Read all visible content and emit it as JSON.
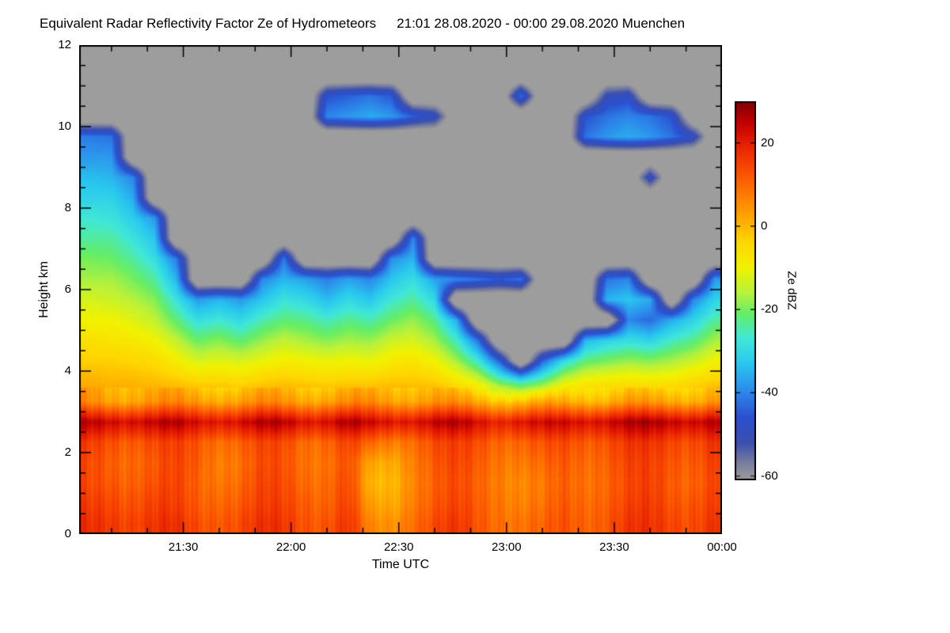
{
  "title": "Equivalent Radar Reflectivity Factor Ze of Hydrometeors",
  "subtitle": "21:01 28.08.2020 - 00:00 29.08.2020 Muenchen",
  "chart_data": {
    "type": "heatmap",
    "xlabel": "Time UTC",
    "ylabel": "Height km",
    "x_range_min": [
      0,
      179
    ],
    "x_start_time": "21:01",
    "x_end_time": "00:00",
    "y_range_km": [
      0,
      12
    ],
    "grid_on": false,
    "x_ticks": [
      {
        "t": 29,
        "label": "21:30"
      },
      {
        "t": 59,
        "label": "22:00"
      },
      {
        "t": 89,
        "label": "22:30"
      },
      {
        "t": 119,
        "label": "23:00"
      },
      {
        "t": 149,
        "label": "23:30"
      },
      {
        "t": 179,
        "label": "00:00"
      }
    ],
    "x_minor_ticks": [
      9,
      19,
      39,
      49,
      69,
      79,
      99,
      109,
      129,
      139,
      159,
      169
    ],
    "y_ticks": [
      0,
      2,
      4,
      6,
      8,
      10,
      12
    ],
    "y_minor_step": 0.5,
    "colorbar": {
      "label": "Ze dBZ",
      "vmin": -61,
      "vmax": 30,
      "ticks": [
        20,
        0,
        -20,
        -40,
        -60
      ],
      "nodata_color": "#9d9d9d",
      "stops": [
        {
          "v": -61,
          "c": "#9d9d9d"
        },
        {
          "v": -57,
          "c": "#7a7f9e"
        },
        {
          "v": -52,
          "c": "#3c4fae"
        },
        {
          "v": -46,
          "c": "#2b4fd0"
        },
        {
          "v": -40,
          "c": "#2d87ea"
        },
        {
          "v": -33,
          "c": "#29c8f0"
        },
        {
          "v": -27,
          "c": "#40e8d8"
        },
        {
          "v": -21,
          "c": "#66ee66"
        },
        {
          "v": -16,
          "c": "#b8f23c"
        },
        {
          "v": -10,
          "c": "#f2f200"
        },
        {
          "v": -4,
          "c": "#ffd800"
        },
        {
          "v": 2,
          "c": "#ffa800"
        },
        {
          "v": 8,
          "c": "#ff7800"
        },
        {
          "v": 14,
          "c": "#f94800"
        },
        {
          "v": 20,
          "c": "#e51e00"
        },
        {
          "v": 25,
          "c": "#c00000"
        },
        {
          "v": 30,
          "c": "#7e0000"
        }
      ]
    },
    "grid": {
      "comment": "values_dbz: 30 time columns (minutes after 21:01) x 24 height levels (bottom to top); null = no echo (gray). Bright band near 2.9 km; stratiform cloud top varies 4-10 km; detached cirrus near 10-11 km.",
      "times_min": [
        3,
        9,
        15,
        21,
        27,
        33,
        39,
        45,
        51,
        57,
        63,
        69,
        75,
        81,
        87,
        93,
        99,
        105,
        111,
        117,
        123,
        129,
        135,
        141,
        147,
        153,
        159,
        165,
        171,
        177
      ],
      "heights_km": [
        0.25,
        0.75,
        1.25,
        1.75,
        2.25,
        2.75,
        3.25,
        3.75,
        4.25,
        4.75,
        5.25,
        5.75,
        6.25,
        6.75,
        7.25,
        7.75,
        8.25,
        8.75,
        9.25,
        9.75,
        10.25,
        10.75,
        11.25,
        11.75
      ],
      "values_dbz": [
        [
          16,
          14,
          12,
          12,
          14,
          24,
          4,
          1,
          -3,
          -6,
          -10,
          -13,
          -17,
          -20,
          -24,
          -27,
          -31,
          -34,
          -38,
          -41,
          null,
          null,
          null,
          null
        ],
        [
          18,
          16,
          14,
          13,
          15,
          25,
          4,
          0,
          -3,
          -7,
          -10,
          -14,
          -17,
          -21,
          -24,
          -28,
          -31,
          -35,
          -38,
          -42,
          null,
          null,
          null,
          null
        ],
        [
          17,
          15,
          13,
          12,
          14,
          25,
          4,
          0,
          -4,
          -8,
          -12,
          -16,
          -20,
          -24,
          -28,
          -32,
          -36,
          -40,
          null,
          null,
          null,
          null,
          null,
          null
        ],
        [
          16,
          14,
          12,
          11,
          13,
          24,
          4,
          -1,
          -5,
          -10,
          -15,
          -19,
          -24,
          -29,
          -33,
          -38,
          null,
          null,
          null,
          null,
          null,
          null,
          null,
          null
        ],
        [
          15,
          13,
          12,
          12,
          13,
          24,
          4,
          -2,
          -9,
          -15,
          -22,
          -28,
          -35,
          -41,
          null,
          null,
          null,
          null,
          null,
          null,
          null,
          null,
          null,
          null
        ],
        [
          14,
          12,
          11,
          12,
          13,
          23,
          4,
          -4,
          -13,
          -21,
          -29,
          -38,
          null,
          null,
          null,
          null,
          null,
          null,
          null,
          null,
          null,
          null,
          null,
          null
        ],
        [
          15,
          13,
          11,
          10,
          12,
          24,
          4,
          -4,
          -12,
          -19,
          -27,
          -35,
          null,
          null,
          null,
          null,
          null,
          null,
          null,
          null,
          null,
          null,
          null,
          null
        ],
        [
          14,
          12,
          10,
          9,
          11,
          23,
          3,
          -5,
          -13,
          -22,
          -30,
          -38,
          null,
          null,
          null,
          null,
          null,
          null,
          null,
          null,
          null,
          null,
          null,
          null
        ],
        [
          15,
          13,
          12,
          11,
          12,
          24,
          4,
          -3,
          -11,
          -18,
          -25,
          -33,
          -40,
          null,
          null,
          null,
          null,
          null,
          null,
          null,
          null,
          null,
          null,
          null
        ],
        [
          16,
          14,
          13,
          12,
          13,
          25,
          4,
          -2,
          -9,
          -15,
          -22,
          -28,
          -35,
          -41,
          null,
          null,
          null,
          null,
          null,
          null,
          null,
          null,
          null,
          null
        ],
        [
          15,
          14,
          12,
          11,
          12,
          24,
          4,
          -3,
          -10,
          -17,
          -23,
          -30,
          -37,
          null,
          null,
          null,
          null,
          null,
          null,
          null,
          null,
          null,
          null,
          null
        ],
        [
          14,
          12,
          11,
          10,
          12,
          24,
          4,
          -4,
          -11,
          -19,
          -26,
          -34,
          -41,
          null,
          null,
          null,
          null,
          null,
          null,
          null,
          -40,
          -46,
          null,
          null
        ],
        [
          15,
          13,
          12,
          11,
          13,
          25,
          4,
          -3,
          -10,
          -17,
          -23,
          -30,
          -37,
          null,
          null,
          null,
          null,
          null,
          null,
          null,
          -38,
          -44,
          null,
          null
        ],
        [
          4,
          1,
          -2,
          0,
          8,
          22,
          4,
          -3,
          -11,
          -18,
          -25,
          -33,
          -40,
          null,
          null,
          null,
          null,
          null,
          null,
          null,
          -36,
          -42,
          null,
          null
        ],
        [
          6,
          3,
          1,
          3,
          9,
          23,
          4,
          -2,
          -8,
          -14,
          -21,
          -27,
          -33,
          -39,
          null,
          null,
          null,
          null,
          null,
          null,
          -38,
          -45,
          null,
          null
        ],
        [
          12,
          10,
          9,
          10,
          12,
          24,
          4,
          -2,
          -7,
          -13,
          -18,
          -24,
          -29,
          -35,
          -40,
          null,
          null,
          null,
          null,
          null,
          -44,
          null,
          null,
          null
        ],
        [
          13,
          11,
          10,
          11,
          13,
          24,
          4,
          -3,
          -10,
          -17,
          -23,
          -30,
          -37,
          null,
          null,
          null,
          null,
          null,
          null,
          null,
          -48,
          null,
          null,
          null
        ],
        [
          14,
          12,
          11,
          12,
          13,
          24,
          3,
          -7,
          -17,
          -26,
          -36,
          null,
          -40,
          null,
          null,
          null,
          null,
          null,
          null,
          null,
          null,
          null,
          null,
          null
        ],
        [
          13,
          12,
          11,
          12,
          14,
          23,
          2,
          -12,
          -27,
          -42,
          null,
          null,
          -42,
          null,
          null,
          null,
          null,
          null,
          null,
          null,
          null,
          null,
          null,
          null
        ],
        [
          12,
          11,
          10,
          11,
          13,
          22,
          0,
          -22,
          -44,
          null,
          null,
          null,
          -45,
          null,
          null,
          null,
          null,
          null,
          null,
          null,
          null,
          null,
          null,
          null
        ],
        [
          9,
          7,
          6,
          8,
          11,
          22,
          -1,
          -28,
          null,
          null,
          null,
          null,
          -42,
          null,
          null,
          null,
          null,
          null,
          null,
          null,
          null,
          -42,
          null,
          null
        ],
        [
          8,
          6,
          5,
          7,
          10,
          21,
          0,
          -22,
          -44,
          null,
          null,
          null,
          null,
          null,
          null,
          null,
          null,
          null,
          null,
          null,
          null,
          null,
          null,
          null
        ],
        [
          12,
          11,
          10,
          11,
          13,
          23,
          1,
          -13,
          -30,
          null,
          null,
          null,
          null,
          null,
          null,
          null,
          null,
          null,
          null,
          null,
          null,
          null,
          null,
          null
        ],
        [
          13,
          12,
          11,
          12,
          14,
          24,
          2,
          -9,
          -22,
          -35,
          null,
          null,
          null,
          null,
          null,
          null,
          null,
          null,
          null,
          -42,
          -46,
          null,
          null,
          null
        ],
        [
          14,
          13,
          12,
          13,
          15,
          25,
          2,
          -8,
          -20,
          -31,
          null,
          -35,
          -42,
          null,
          null,
          null,
          null,
          null,
          null,
          -38,
          -42,
          -50,
          null,
          null
        ],
        [
          15,
          13,
          12,
          13,
          15,
          25,
          3,
          -7,
          -18,
          -29,
          -40,
          -33,
          -40,
          null,
          null,
          null,
          null,
          null,
          null,
          -36,
          -40,
          -48,
          null,
          null
        ],
        [
          15,
          14,
          13,
          13,
          15,
          25,
          2,
          -8,
          -19,
          -31,
          -43,
          -36,
          null,
          null,
          null,
          null,
          null,
          -48,
          null,
          -38,
          -42,
          null,
          null,
          null
        ],
        [
          16,
          14,
          13,
          14,
          16,
          26,
          3,
          -7,
          -17,
          -26,
          -36,
          null,
          null,
          null,
          null,
          null,
          null,
          null,
          null,
          -42,
          -46,
          null,
          null,
          null
        ],
        [
          16,
          15,
          13,
          14,
          16,
          26,
          3,
          -5,
          -14,
          -23,
          -31,
          -40,
          null,
          null,
          null,
          null,
          null,
          null,
          null,
          -48,
          null,
          null,
          null,
          null
        ],
        [
          17,
          15,
          14,
          15,
          17,
          26,
          4,
          -3,
          -10,
          -17,
          -24,
          -31,
          -38,
          null,
          null,
          null,
          null,
          null,
          null,
          null,
          null,
          null,
          null,
          null
        ]
      ]
    }
  }
}
